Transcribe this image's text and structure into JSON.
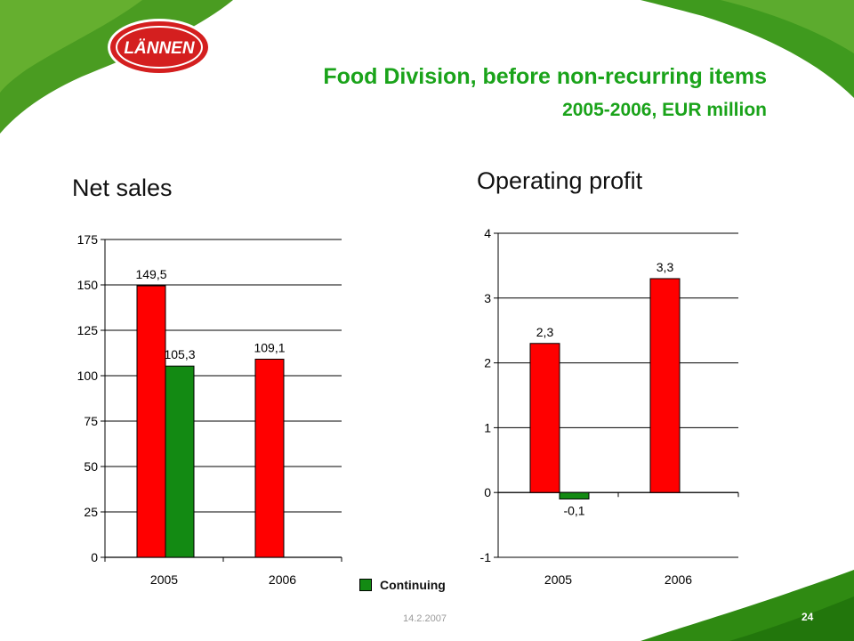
{
  "slide": {
    "logo_text": "LÄNNEN",
    "title": "Food Division, before non-recurring items",
    "subtitle": "2005-2006, EUR million",
    "footer_date": "14.2.2007",
    "page_number": "24",
    "colors": {
      "title_green": "#1aa31a",
      "bar_red": "#ff0000",
      "bar_green": "#138a13",
      "leaf_green": "#3f9a1e"
    }
  },
  "legend": {
    "label": "Continuing"
  },
  "chart_data": [
    {
      "type": "bar",
      "title": "Net sales",
      "categories": [
        "2005",
        "2006"
      ],
      "ylim": [
        0,
        175
      ],
      "yticks": [
        0,
        25,
        50,
        75,
        100,
        125,
        150,
        175
      ],
      "ytick_labels": [
        "0",
        "25",
        "50",
        "75",
        "100",
        "125",
        "150",
        "175"
      ],
      "grid": true,
      "bars": [
        {
          "category": "2005",
          "series": "",
          "value": 149.5,
          "label": "149,5",
          "color": "#ff0000"
        },
        {
          "category": "2005",
          "series": "Continuing",
          "value": 105.3,
          "label": "105,3",
          "color": "#138a13"
        },
        {
          "category": "2006",
          "series": "",
          "value": 109.1,
          "label": "109,1",
          "color": "#ff0000"
        }
      ]
    },
    {
      "type": "bar",
      "title": "Operating profit",
      "categories": [
        "2005",
        "2006"
      ],
      "ylim": [
        -1,
        4
      ],
      "yticks": [
        -1,
        0,
        1,
        2,
        3,
        4
      ],
      "ytick_labels": [
        "-1",
        "0",
        "1",
        "2",
        "3",
        "4"
      ],
      "grid": true,
      "bars": [
        {
          "category": "2005",
          "series": "",
          "value": 2.3,
          "label": "2,3",
          "color": "#ff0000"
        },
        {
          "category": "2005",
          "series": "Continuing",
          "value": -0.1,
          "label": "-0,1",
          "color": "#138a13"
        },
        {
          "category": "2006",
          "series": "",
          "value": 3.3,
          "label": "3,3",
          "color": "#ff0000"
        }
      ]
    }
  ]
}
